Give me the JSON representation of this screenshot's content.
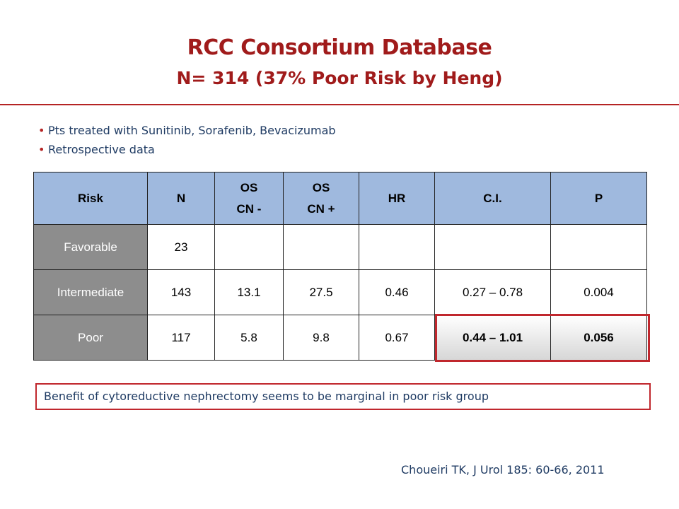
{
  "title": "RCC Consortium Database",
  "subtitle": "N= 314 (37% Poor Risk by Heng)",
  "bullets": [
    "Pts treated with Sunitinib, Sorafenib, Bevacizumab",
    "Retrospective data"
  ],
  "table": {
    "headers": [
      {
        "line1": "Risk",
        "line2": ""
      },
      {
        "line1": "N",
        "line2": ""
      },
      {
        "line1": "OS",
        "line2": "CN -"
      },
      {
        "line1": "OS",
        "line2": "CN +"
      },
      {
        "line1": "HR",
        "line2": ""
      },
      {
        "line1": "C.I.",
        "line2": ""
      },
      {
        "line1": "P",
        "line2": ""
      }
    ],
    "rows": [
      {
        "risk": "Favorable",
        "n": "23",
        "os_cn_minus": "",
        "os_cn_plus": "",
        "hr": "",
        "ci": "",
        "p": ""
      },
      {
        "risk": "Intermediate",
        "n": "143",
        "os_cn_minus": "13.1",
        "os_cn_plus": "27.5",
        "hr": "0.46",
        "ci": "0.27 – 0.78",
        "p": "0.004"
      },
      {
        "risk": "Poor",
        "n": "117",
        "os_cn_minus": "5.8",
        "os_cn_plus": "9.8",
        "hr": "0.67",
        "ci": "0.44 – 1.01",
        "p": "0.056"
      }
    ]
  },
  "note": "Benefit of cytoreductive nephrectomy seems to be marginal in poor risk group",
  "citation": "Choueiri TK, J Urol 185: 60-66, 2011",
  "colors": {
    "accent": "#b52424",
    "header_fill": "#9fb9de",
    "risk_fill": "#8d8d8d",
    "text_blue": "#1f3b63"
  }
}
